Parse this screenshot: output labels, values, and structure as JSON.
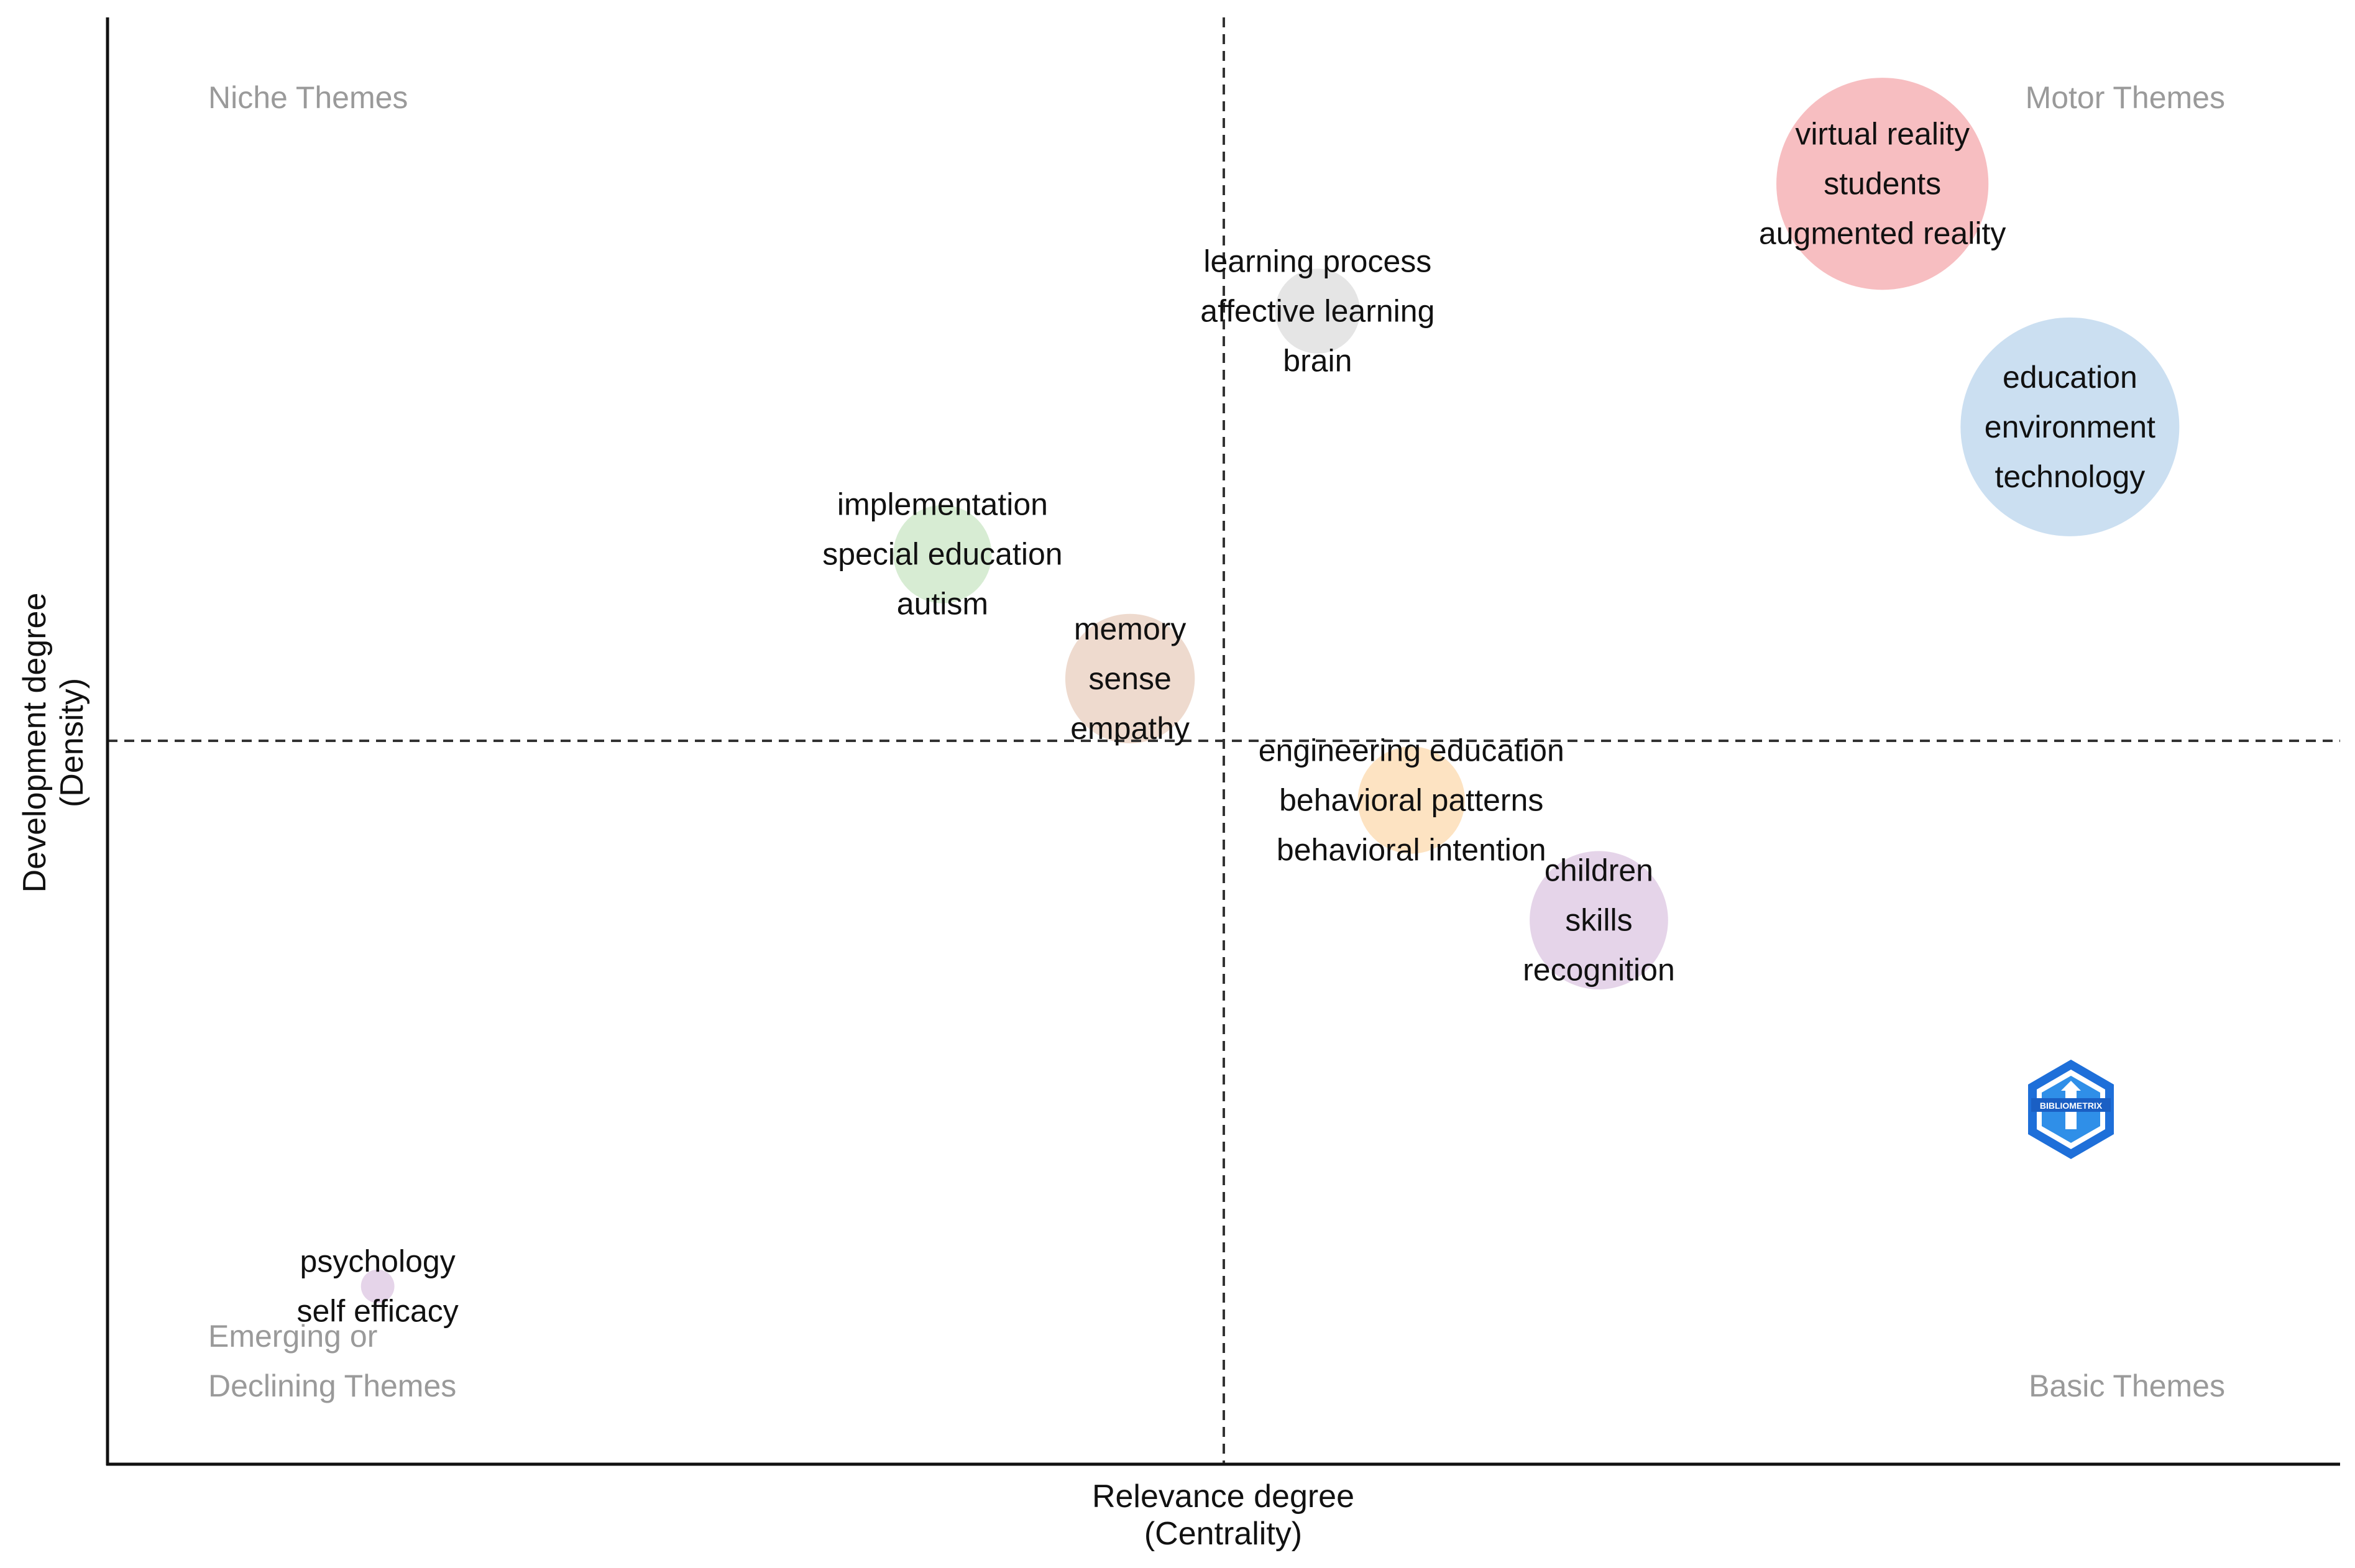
{
  "chart_data": {
    "type": "scatter",
    "subtype": "thematic-map",
    "title": "",
    "xlabel": [
      "Relevance degree",
      "(Centrality)"
    ],
    "ylabel": [
      "Development degree",
      "(Density)"
    ],
    "xlim": [
      0,
      100
    ],
    "ylim": [
      0,
      100
    ],
    "x_threshold": 50,
    "y_threshold": 50,
    "grid": false,
    "quadrant_labels": {
      "top_left": [
        "Niche Themes"
      ],
      "top_right": [
        "Motor Themes"
      ],
      "bottom_left": [
        "Emerging or",
        "Declining Themes"
      ],
      "bottom_right": [
        "Basic Themes"
      ]
    },
    "clusters": [
      {
        "name": "virtual reality",
        "x": 79.5,
        "y": 88.5,
        "size": 9.5,
        "color": "#f4a8ac",
        "terms": [
          "virtual reality",
          "students",
          "augmented reality"
        ]
      },
      {
        "name": "education",
        "x": 87.9,
        "y": 71.7,
        "size": 9.8,
        "color": "#b9d4ec",
        "terms": [
          "education",
          "environment",
          "technology"
        ]
      },
      {
        "name": "learning process",
        "x": 54.2,
        "y": 79.7,
        "size": 3.8,
        "color": "#dcdcdc",
        "terms": [
          "learning process",
          "affective learning",
          "brain"
        ]
      },
      {
        "name": "implementation",
        "x": 37.4,
        "y": 62.9,
        "size": 4.4,
        "color": "#c9e6c4",
        "terms": [
          "implementation",
          "special education",
          "autism"
        ]
      },
      {
        "name": "memory",
        "x": 45.8,
        "y": 54.3,
        "size": 5.8,
        "color": "#e8cebe",
        "terms": [
          "memory",
          "sense",
          "empathy"
        ]
      },
      {
        "name": "engineering education",
        "x": 58.4,
        "y": 45.9,
        "size": 4.8,
        "color": "#fcd9ad",
        "terms": [
          "engineering education",
          "behavioral patterns",
          "behavioral intention"
        ]
      },
      {
        "name": "children",
        "x": 66.8,
        "y": 37.6,
        "size": 6.2,
        "color": "#dcc6e2",
        "terms": [
          "children",
          "skills",
          "recognition"
        ]
      },
      {
        "name": "psychology",
        "x": 12.1,
        "y": 12.3,
        "size": 1.5,
        "color": "#dcc6e2",
        "terms": [
          "psychology",
          "self efficacy"
        ]
      }
    ]
  },
  "watermark": {
    "text": "BIBLIOMETRIX",
    "colors": [
      "#1e6fd9",
      "#38b6ff",
      "#ffffff"
    ]
  }
}
